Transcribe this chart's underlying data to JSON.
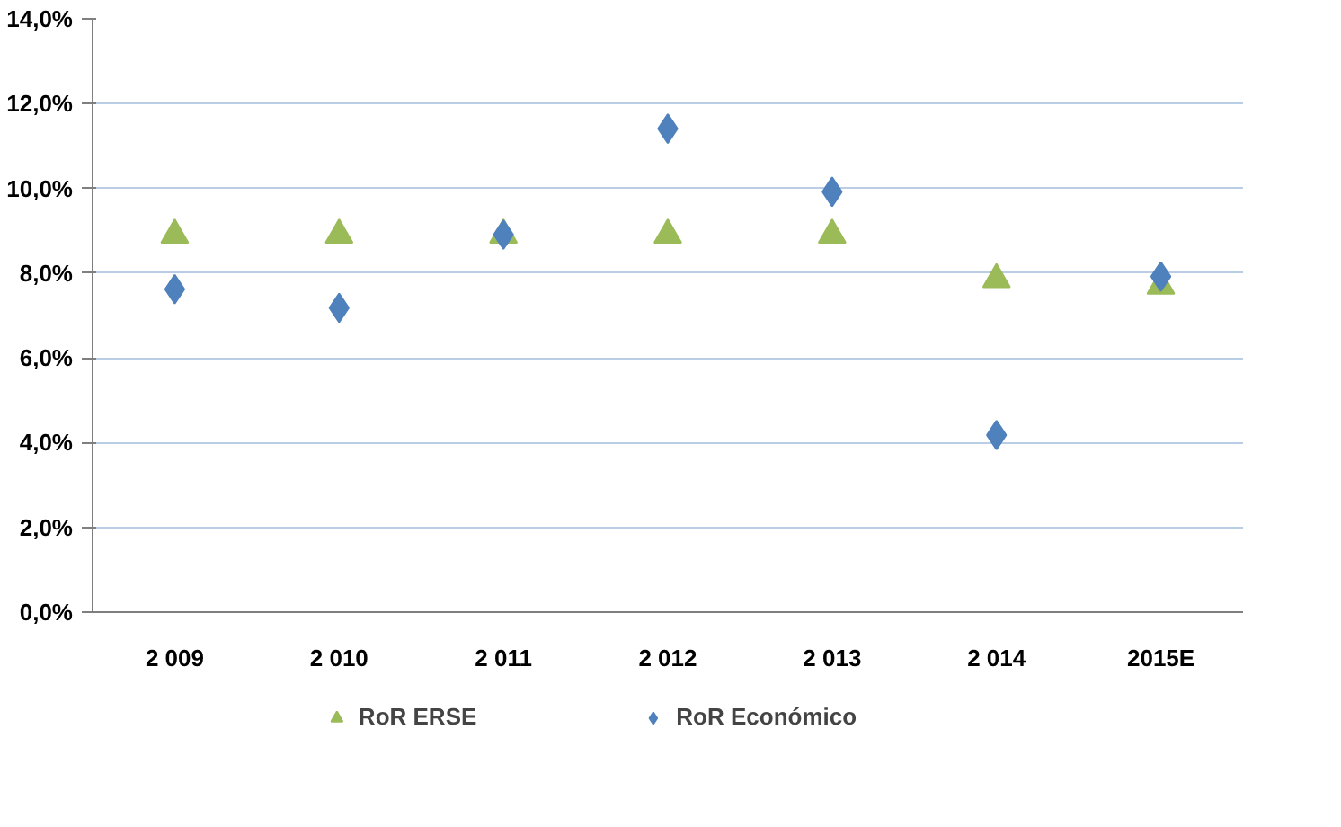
{
  "chart_data": {
    "type": "scatter",
    "categories": [
      "2 009",
      "2 010",
      "2 011",
      "2 012",
      "2 013",
      "2 014",
      "2015E"
    ],
    "series": [
      {
        "name": "RoR ERSE",
        "color": "#9bbb59",
        "marker": "triangle",
        "values": [
          8.9,
          8.9,
          8.9,
          8.9,
          8.9,
          7.85,
          7.7
        ]
      },
      {
        "name": "RoR Económico",
        "color": "#4f81bd",
        "marker": "diamond",
        "values": [
          7.62,
          7.18,
          8.91,
          11.41,
          9.92,
          4.18,
          7.92
        ]
      }
    ],
    "ylim": [
      0,
      14
    ],
    "yticks": [
      {
        "value": 0,
        "label": "0,0%"
      },
      {
        "value": 2,
        "label": "2,0%"
      },
      {
        "value": 4,
        "label": "4,0%"
      },
      {
        "value": 6,
        "label": "6,0%"
      },
      {
        "value": 8,
        "label": "8,0%"
      },
      {
        "value": 10,
        "label": "10,0%"
      },
      {
        "value": 12,
        "label": "12,0%"
      },
      {
        "value": 14,
        "label": "14,0%"
      }
    ],
    "grid": "y",
    "legend": "bottom"
  }
}
